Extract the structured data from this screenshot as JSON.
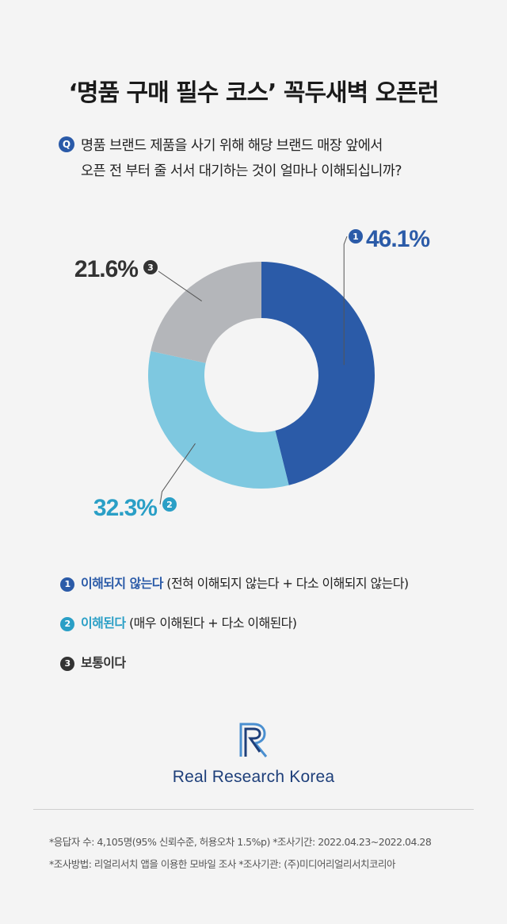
{
  "title": "‘명품 구매 필수 코스’ 꼭두새벽 오픈런",
  "question": {
    "badge": "Q",
    "line1": "명품 브랜드 제품을 사기 위해 해당 브랜드 매장 앞에서",
    "line2": "오픈 전 부터 줄 서서 대기하는 것이 얼마나 이해되십니까?"
  },
  "chart_data": {
    "type": "pie",
    "donut": true,
    "labels": [
      "이해되지 않는다",
      "이해된다",
      "보통이다"
    ],
    "values": [
      46.1,
      32.3,
      21.6
    ],
    "value_labels": [
      "46.1%",
      "32.3%",
      "21.6%"
    ],
    "markers": [
      "1",
      "2",
      "3"
    ],
    "colors": [
      "#2b5ba8",
      "#7ec8e0",
      "#b4b6ba"
    ],
    "label_colors": [
      "#2b5ba8",
      "#2a9fc6",
      "#333333"
    ]
  },
  "legend": [
    {
      "num": "1",
      "title": "이해되지 않는다",
      "desc": " (전혀 이해되지 않는다 + 다소 이해되지 않는다)",
      "color": "#2b5ba8"
    },
    {
      "num": "2",
      "title": "이해된다",
      "desc": " (매우 이해된다 + 다소 이해된다)",
      "color": "#2a9fc6"
    },
    {
      "num": "3",
      "title": "보통이다",
      "desc": "",
      "color": "#333333"
    }
  ],
  "logo": {
    "text": "Real Research Korea"
  },
  "notes": [
    "*응답자 수: 4,105명(95% 신뢰수준, 허용오차 1.5%p)  *조사기간: 2022.04.23~2022.04.28",
    "*조사방법: 리얼리서치 앱을 이용한 모바일 조사  *조사기관: (주)미디어리얼리서치코리아"
  ]
}
